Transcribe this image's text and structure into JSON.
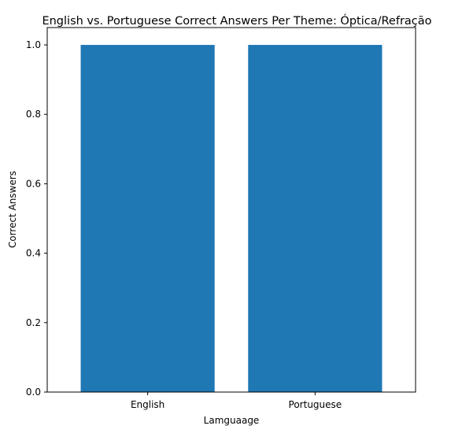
{
  "chart_data": {
    "type": "bar",
    "title": "English vs. Portuguese Correct Answers Per Theme: Óptica/Refração",
    "xlabel": "Lamguaage",
    "ylabel": "Correct Answers",
    "categories": [
      "English",
      "Portuguese"
    ],
    "values": [
      1.0,
      1.0
    ],
    "ylim": [
      0,
      1.05
    ],
    "yticks": [
      "0.0",
      "0.2",
      "0.4",
      "0.6",
      "0.8",
      "1.0"
    ],
    "bar_color": "#1f77b4",
    "grid": false,
    "legend": "none"
  }
}
